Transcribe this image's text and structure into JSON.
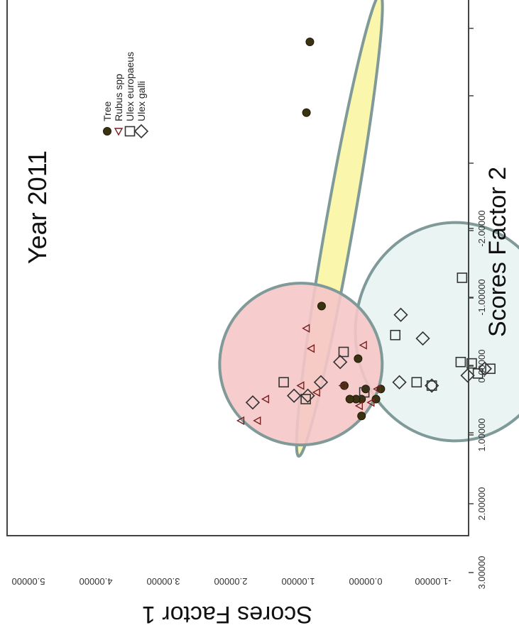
{
  "chart_data": {
    "type": "scatter",
    "title": "Year 2011",
    "xlabel": "Scores Factor 1",
    "ylabel": "Scores Factor 2",
    "xlim": [
      -1.5,
      5.2
    ],
    "ylim": [
      -2.35,
      3.3
    ],
    "x_ticks": [
      "5.00000",
      "4.00000",
      "3.00000",
      "2.00000",
      "1.00000",
      "0.00000",
      "-1.00000"
    ],
    "y_ticks": [
      "-2.00000",
      "-1.00000",
      "0.00000",
      "1.00000",
      "2.00000",
      "3.00000"
    ],
    "legend_position": "upper-right",
    "grid": false,
    "series": [
      {
        "name": "Tree",
        "marker": "circle",
        "points": [
          [
            4.8,
            -0.82
          ],
          [
            3.75,
            -0.87
          ],
          [
            0.88,
            -0.65
          ],
          [
            0.1,
            -0.12
          ],
          [
            -0.35,
            0.21
          ],
          [
            -0.35,
            -0.01
          ],
          [
            -0.5,
            0.14
          ],
          [
            -0.5,
            -0.07
          ],
          [
            -0.5,
            -0.15
          ],
          [
            -0.75,
            -0.07
          ],
          [
            -0.3,
            -0.32
          ],
          [
            -0.5,
            -0.24
          ]
        ]
      },
      {
        "name": "Rubus spp",
        "marker": "triangle",
        "points": [
          [
            -0.35,
            0.16
          ],
          [
            -0.55,
            0.07
          ],
          [
            0.3,
            -0.04
          ],
          [
            -0.3,
            -0.34
          ],
          [
            0.25,
            -0.8
          ],
          [
            0.55,
            -0.87
          ],
          [
            -0.3,
            -0.95
          ],
          [
            -0.4,
            -0.72
          ],
          [
            -0.6,
            -0.1
          ],
          [
            -0.5,
            -1.46
          ],
          [
            -0.82,
            -1.58
          ],
          [
            -0.82,
            -1.82
          ]
        ]
      },
      {
        "name": "Ulex europaeus",
        "marker": "square",
        "points": [
          [
            -0.12,
            2.52
          ],
          [
            -0.05,
            1.8
          ],
          [
            -0.12,
            1.62
          ],
          [
            0.03,
            1.53
          ],
          [
            0.05,
            1.37
          ],
          [
            1.3,
            1.39
          ],
          [
            -0.3,
            0.95
          ],
          [
            -0.25,
            0.73
          ],
          [
            0.45,
            0.42
          ],
          [
            -0.4,
            -0.03
          ],
          [
            0.2,
            -0.33
          ],
          [
            -0.5,
            -0.88
          ],
          [
            -0.25,
            -1.2
          ]
        ]
      },
      {
        "name": "Ulex galli",
        "marker": "diamond",
        "points": [
          [
            -0.05,
            1.72
          ],
          [
            -0.15,
            1.47
          ],
          [
            -0.3,
            0.95
          ],
          [
            0.4,
            0.82
          ],
          [
            0.75,
            0.5
          ],
          [
            -0.25,
            0.48
          ],
          [
            0.05,
            -0.38
          ],
          [
            -0.25,
            -0.66
          ],
          [
            -0.45,
            -0.85
          ],
          [
            -0.45,
            -1.05
          ],
          [
            -0.55,
            -1.65
          ]
        ]
      }
    ],
    "ellipses": [
      {
        "group": "Ulex europaeus / Ulex galli",
        "fill": "#E8F3F1",
        "stroke": "#7F9A98",
        "cx": 0.5,
        "cy": 1.29,
        "rx": 1.62,
        "ry": 1.45,
        "rotation": 0
      },
      {
        "group": "Tree",
        "fill": "#FAF5A3",
        "stroke": "#7F9A98",
        "cx": 2.08,
        "cy": -0.39,
        "rx": 3.48,
        "ry": 0.2,
        "rotation": 10
      },
      {
        "group": "Rubus spp",
        "fill": "#F6C6C8",
        "stroke": "#7F9A98",
        "cx": 0.02,
        "cy": -0.95,
        "rx": 1.2,
        "ry": 1.18,
        "rotation": 0
      }
    ]
  }
}
